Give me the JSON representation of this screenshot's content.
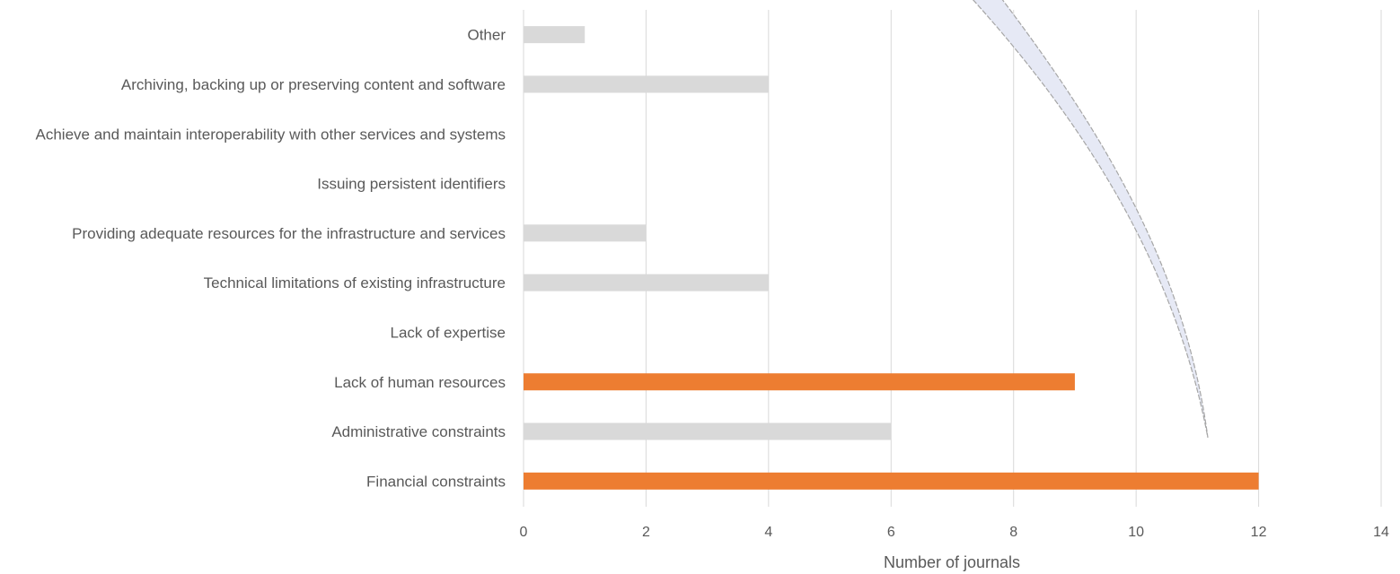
{
  "chart_data": {
    "type": "bar",
    "orientation": "horizontal",
    "title": "",
    "xlabel": "Number of journals",
    "ylabel": "",
    "xlim": [
      0,
      14
    ],
    "xticks": [
      0,
      2,
      4,
      6,
      8,
      10,
      12,
      14
    ],
    "grid": "vertical",
    "legend": "none",
    "categories": [
      "Other",
      "Archiving, backing up or preserving content and software",
      "Achieve and maintain interoperability with other services and systems",
      "Issuing persistent identifiers",
      "Providing adequate resources for the infrastructure and services",
      "Technical limitations of existing infrastructure",
      "Lack of expertise",
      "Lack of human resources",
      "Administrative constraints",
      "Financial constraints"
    ],
    "values": [
      1,
      4,
      0,
      0,
      2,
      4,
      0,
      9,
      6,
      12
    ],
    "highlighted": [
      false,
      false,
      false,
      false,
      false,
      false,
      false,
      true,
      false,
      true
    ],
    "colors": {
      "default_bar": "#d9d9d9",
      "highlight_bar": "#ed7d31",
      "grid": "#d9d9d9",
      "text": "#595959",
      "decoration_fill": "#e6e9f5",
      "decoration_stroke": "#a6a6a6"
    }
  }
}
